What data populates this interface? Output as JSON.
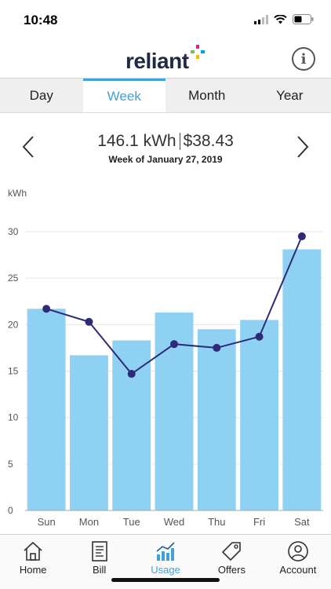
{
  "status_bar": {
    "time": "10:48"
  },
  "header": {
    "logo_text": "reliant"
  },
  "tabs": [
    {
      "label": "Day",
      "active": false
    },
    {
      "label": "Week",
      "active": true
    },
    {
      "label": "Month",
      "active": false
    },
    {
      "label": "Year",
      "active": false
    }
  ],
  "period": {
    "kwh": "146.1 kWh",
    "cost": "$38.43",
    "week_label": "Week of January 27, 2019"
  },
  "chart_data": {
    "type": "bar",
    "ylabel": "kWh",
    "ylim": [
      0,
      30
    ],
    "yticks": [
      0,
      5,
      10,
      15,
      20,
      25,
      30
    ],
    "categories": [
      "Sun",
      "Mon",
      "Tue",
      "Wed",
      "Thu",
      "Fri",
      "Sat"
    ],
    "series": [
      {
        "type": "bar",
        "values": [
          21.7,
          16.7,
          18.3,
          21.3,
          19.5,
          20.5,
          28.1
        ]
      },
      {
        "type": "line",
        "values": [
          21.7,
          20.3,
          14.7,
          17.9,
          17.5,
          18.7,
          29.5
        ]
      }
    ],
    "grid": true,
    "colors": {
      "bar": "#8fd1f3",
      "line": "#2e2a7a",
      "grid": "#e6e6e6"
    }
  },
  "bottom_nav": [
    {
      "label": "Home",
      "icon": "home-icon",
      "active": false
    },
    {
      "label": "Bill",
      "icon": "bill-icon",
      "active": false
    },
    {
      "label": "Usage",
      "icon": "usage-icon",
      "active": true
    },
    {
      "label": "Offers",
      "icon": "offers-icon",
      "active": false
    },
    {
      "label": "Account",
      "icon": "account-icon",
      "active": false
    }
  ]
}
